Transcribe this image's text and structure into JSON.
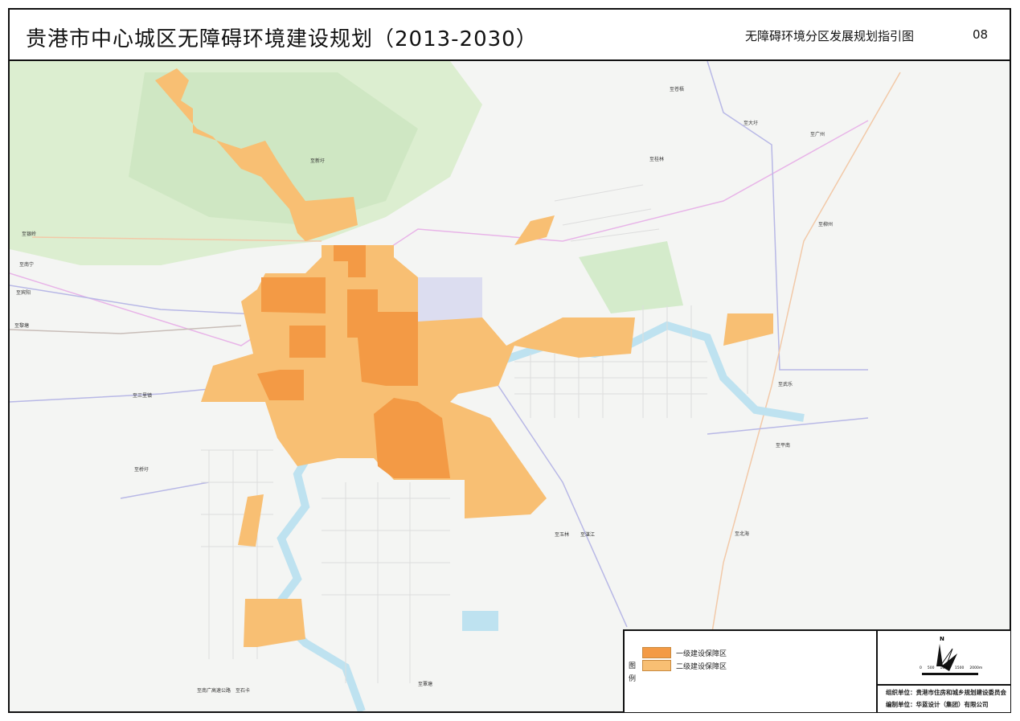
{
  "header": {
    "title": "贵港市中心城区无障碍环境建设规划（2013-2030）",
    "subtitle": "无障碍环境分区发展规划指引图",
    "sheet_no": "08"
  },
  "colors": {
    "level1": "#F39A45",
    "level2": "#F8BF73",
    "water": "#BEE2F0",
    "hill": "#DDEFD2",
    "road_pink": "#E8B4E8",
    "road_purple": "#B8B8E6"
  },
  "map_labels": [
    "至银岭",
    "至南宁",
    "至宾阳",
    "至黎塘",
    "至三里镇",
    "至桥圩",
    "至新圩",
    "至苍梧",
    "至大圩",
    "至广州",
    "至桂林",
    "至柳州",
    "至武乐",
    "至平南",
    "至玉林",
    "至湛江",
    "至北海",
    "至南广高速公路",
    "至石卡",
    "至覃塘"
  ],
  "legend": {
    "heading": "图例",
    "items": [
      {
        "label": "一级建设保障区",
        "color": "#F39A45"
      },
      {
        "label": "二级建设保障区",
        "color": "#F8BF73"
      }
    ]
  },
  "north": "N",
  "scale": {
    "ticks": [
      "0",
      "500",
      "1000",
      "1500",
      "2000m"
    ]
  },
  "credits": {
    "organizer": "组织单位：贵港市住房和城乡规划建设委员会",
    "compiler": "编制单位：华蓝设计（集团）有限公司"
  }
}
